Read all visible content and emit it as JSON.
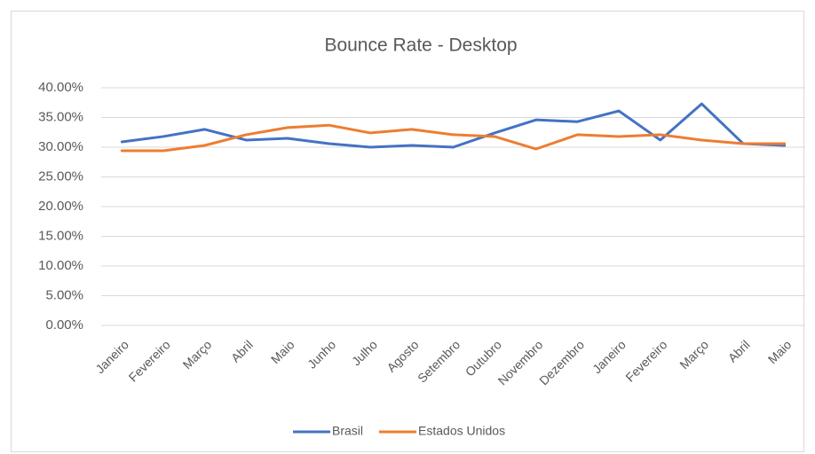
{
  "chart_data": {
    "type": "line",
    "title": "Bounce Rate - Desktop",
    "categories": [
      "Janeiro",
      "Fevereiro",
      "Março",
      "Abril",
      "Maio",
      "Junho",
      "Julho",
      "Agosto",
      "Setembro",
      "Outubro",
      "Novembro",
      "Dezembro",
      "Janeiro",
      "Fevereiro",
      "Março",
      "Abril",
      "Maio"
    ],
    "series": [
      {
        "name": "Brasil",
        "color": "#4472c4",
        "values": [
          30.9,
          31.8,
          33.0,
          31.2,
          31.5,
          30.6,
          30.0,
          30.3,
          30.0,
          32.4,
          34.6,
          34.3,
          36.1,
          31.2,
          37.3,
          30.6,
          30.3
        ]
      },
      {
        "name": "Estados Unidos",
        "color": "#ed7d31",
        "values": [
          29.4,
          29.4,
          30.3,
          32.1,
          33.3,
          33.7,
          32.4,
          33.0,
          32.1,
          31.8,
          29.7,
          32.1,
          31.8,
          32.1,
          31.2,
          30.6,
          30.6
        ]
      }
    ],
    "ylim": [
      0,
      40
    ],
    "yticks": [
      {
        "value": 0,
        "label": "0.00%"
      },
      {
        "value": 5,
        "label": "5.00%"
      },
      {
        "value": 10,
        "label": "10.00%"
      },
      {
        "value": 15,
        "label": "15.00%"
      },
      {
        "value": 20,
        "label": "20.00%"
      },
      {
        "value": 25,
        "label": "25.00%"
      },
      {
        "value": 30,
        "label": "30.00%"
      },
      {
        "value": 35,
        "label": "35.00%"
      },
      {
        "value": 40,
        "label": "40.00%"
      }
    ],
    "grid": true,
    "legend": "bottom"
  }
}
